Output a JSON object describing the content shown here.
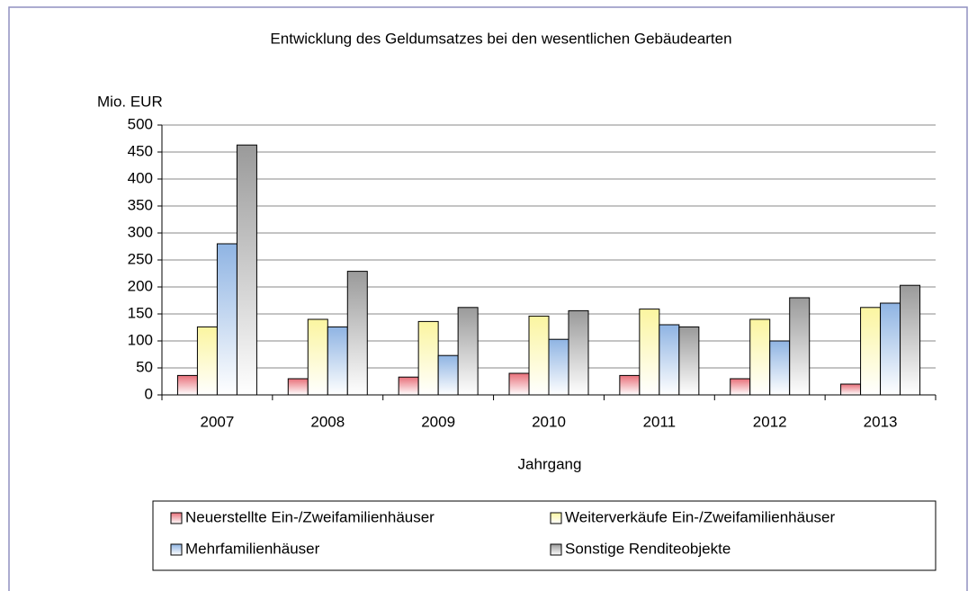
{
  "chart_data": {
    "type": "bar",
    "title": "Entwicklung des Geldumsatzes bei den wesentlichen Gebäudearten",
    "y_label": "Mio. EUR",
    "x_label": "Jahrgang",
    "categories": [
      "2007",
      "2008",
      "2009",
      "2010",
      "2011",
      "2012",
      "2013"
    ],
    "series": [
      {
        "name": "Neuerstellte Ein-/Zweifamilienhäuser",
        "color": "#e8707a",
        "values": [
          36,
          30,
          33,
          40,
          36,
          30,
          20
        ]
      },
      {
        "name": "Weiterverkäufe Ein-/Zweifamilienhäuser",
        "color": "#fbf5a0",
        "values": [
          126,
          140,
          136,
          146,
          159,
          140,
          162
        ]
      },
      {
        "name": "Mehrfamilienhäuser",
        "color": "#8fb4e3",
        "values": [
          280,
          126,
          73,
          103,
          130,
          100,
          170
        ]
      },
      {
        "name": "Sonstige Renditeobjekte",
        "color": "#9a9a9a",
        "values": [
          463,
          229,
          162,
          156,
          126,
          180,
          203
        ]
      }
    ],
    "ylim": [
      0,
      500
    ],
    "yticks": [
      0,
      50,
      100,
      150,
      200,
      250,
      300,
      350,
      400,
      450,
      500
    ],
    "grid": true,
    "legend": "bottom"
  }
}
